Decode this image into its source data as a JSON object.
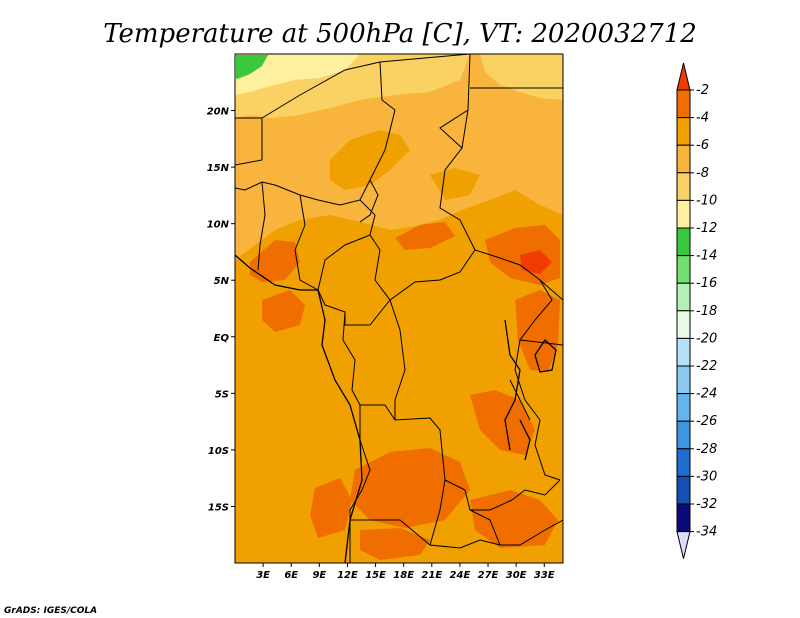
{
  "chart_data": {
    "type": "heatmap",
    "title": "Temperature at 500hPa [C], VT: 2020032712",
    "x_axis": {
      "range": [
        0,
        35
      ],
      "ticks": [
        3,
        6,
        9,
        12,
        15,
        18,
        21,
        24,
        27,
        30,
        33
      ],
      "tick_labels": [
        "3E",
        "6E",
        "9E",
        "12E",
        "15E",
        "18E",
        "21E",
        "24E",
        "27E",
        "30E",
        "33E"
      ]
    },
    "y_axis": {
      "range": [
        -20,
        25
      ],
      "ticks": [
        20,
        15,
        10,
        5,
        0,
        -5,
        -10,
        -15
      ],
      "tick_labels": [
        "20N",
        "15N",
        "10N",
        "5N",
        "EQ",
        "5S",
        "10S",
        "15S"
      ]
    },
    "colorbar": {
      "orientation": "vertical",
      "placement": "right",
      "levels": [
        -2,
        -4,
        -6,
        -8,
        -10,
        -12,
        -14,
        -16,
        -18,
        -20,
        -22,
        -24,
        -26,
        -28,
        -30,
        -32,
        -34
      ],
      "level_labels": [
        "-2",
        "-4",
        "-6",
        "-8",
        "-10",
        "-12",
        "-14",
        "-16",
        "-18",
        "-20",
        "-22",
        "-24",
        "-26",
        "-28",
        "-30",
        "-32",
        "-34"
      ],
      "colors": [
        "#f03c00",
        "#f06e00",
        "#f0a000",
        "#f8b43c",
        "#fad264",
        "#fff0a0",
        "#3cc83c",
        "#6ee16e",
        "#b4f0b4",
        "#e6fae6",
        "#b4e1fa",
        "#8cc8f0",
        "#64b4f0",
        "#3c96e1",
        "#1e6ed2",
        "#1450b4",
        "#0a0a78"
      ],
      "top_color": "#f03c00",
      "bottom_color": "#dcdcff"
    },
    "field_description_levels": {
      "dominant": -6,
      "warm_patches": -4,
      "cool_north": -8,
      "coldest_patch": -14
    },
    "grid": false
  },
  "credit": "GrADS: IGES/COLA"
}
